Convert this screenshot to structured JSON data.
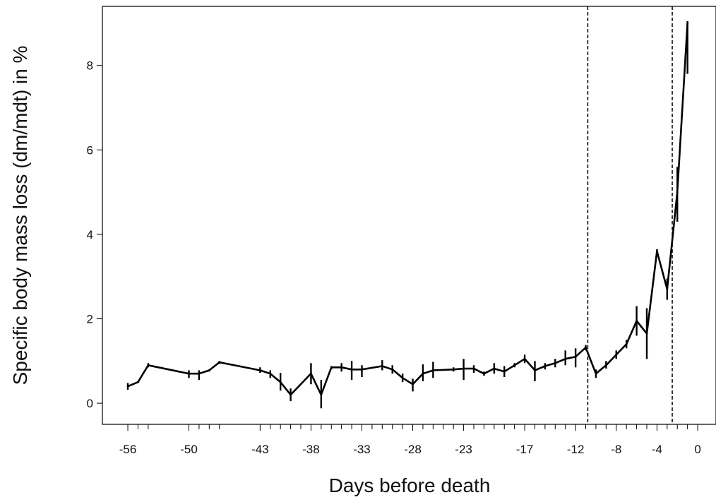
{
  "chart_data": {
    "type": "line",
    "title": "",
    "xlabel": "Days before death",
    "ylabel": "Specific body mass loss (dm/mdt) in %",
    "xlim": [
      -58.5,
      1.8
    ],
    "ylim": [
      -0.5,
      9.4
    ],
    "grid": false,
    "x_ticks": [
      -56,
      -50,
      -43,
      -38,
      -33,
      -28,
      -23,
      -17,
      -12,
      -8,
      -4,
      0
    ],
    "x_tick_labels": [
      "-56",
      "-50",
      "-43",
      "-38",
      "-33",
      "-28",
      "-23",
      "-17",
      "-12",
      "-8",
      "-4",
      "0"
    ],
    "x_minor_ticks": [
      -55,
      -54,
      -49,
      -48,
      -47,
      -42,
      -41,
      -40,
      -39,
      -37,
      -36,
      -35,
      -34,
      -32,
      -31,
      -30,
      -29,
      -27,
      -26,
      -25,
      -24,
      -22,
      -21,
      -20,
      -19,
      -18,
      -16,
      -15,
      -14,
      -13,
      -11,
      -10,
      -9,
      -7,
      -6,
      -5,
      -3,
      -2,
      -1
    ],
    "y_ticks": [
      0,
      2,
      4,
      6,
      8
    ],
    "y_tick_labels": [
      "0",
      "2",
      "4",
      "6",
      "8"
    ],
    "reference_lines_x": [
      -10.8,
      -2.5
    ],
    "series": [
      {
        "x": [
          -56,
          -55,
          -54,
          -50,
          -49,
          -48,
          -47,
          -43,
          -42,
          -41,
          -40,
          -38,
          -37,
          -36,
          -35,
          -34,
          -33,
          -31,
          -30,
          -29,
          -28,
          -27,
          -26,
          -24,
          -23,
          -22,
          -21,
          -20,
          -19,
          -18,
          -17,
          -16,
          -15,
          -14,
          -13,
          -12,
          -11,
          -10,
          -9,
          -8,
          -7,
          -6,
          -5,
          -4,
          -3,
          -2,
          -1
        ],
        "y": [
          0.4,
          0.5,
          0.9,
          0.7,
          0.7,
          0.78,
          0.97,
          0.78,
          0.7,
          0.5,
          0.2,
          0.7,
          0.2,
          0.85,
          0.85,
          0.8,
          0.8,
          0.88,
          0.8,
          0.6,
          0.45,
          0.7,
          0.78,
          0.8,
          0.82,
          0.82,
          0.7,
          0.82,
          0.75,
          0.9,
          1.05,
          0.78,
          0.88,
          0.95,
          1.05,
          1.1,
          1.32,
          0.7,
          0.9,
          1.15,
          1.4,
          1.95,
          1.65,
          3.6,
          2.7,
          5.0,
          9.0
        ],
        "error_low": [
          0.32,
          0.5,
          0.85,
          0.6,
          0.55,
          0.75,
          0.93,
          0.72,
          0.6,
          0.3,
          0.05,
          0.45,
          -0.12,
          0.8,
          0.75,
          0.55,
          0.62,
          0.78,
          0.7,
          0.5,
          0.28,
          0.52,
          0.6,
          0.75,
          0.55,
          0.72,
          0.65,
          0.7,
          0.62,
          0.85,
          0.95,
          0.52,
          0.8,
          0.85,
          0.9,
          0.85,
          1.25,
          0.6,
          0.82,
          1.05,
          1.3,
          1.6,
          1.05,
          3.5,
          2.45,
          4.3,
          7.8
        ],
        "error_high": [
          0.48,
          0.5,
          0.95,
          0.78,
          0.78,
          0.8,
          1.0,
          0.85,
          0.78,
          0.72,
          0.35,
          0.95,
          0.55,
          0.88,
          0.95,
          1.0,
          0.9,
          1.02,
          0.9,
          0.7,
          0.58,
          0.92,
          0.98,
          0.85,
          1.05,
          0.9,
          0.75,
          0.95,
          0.88,
          0.95,
          1.15,
          1.0,
          0.95,
          1.05,
          1.25,
          1.3,
          1.38,
          0.8,
          1.0,
          1.25,
          1.5,
          2.3,
          2.25,
          3.65,
          2.95,
          5.6,
          9.05
        ]
      }
    ]
  }
}
